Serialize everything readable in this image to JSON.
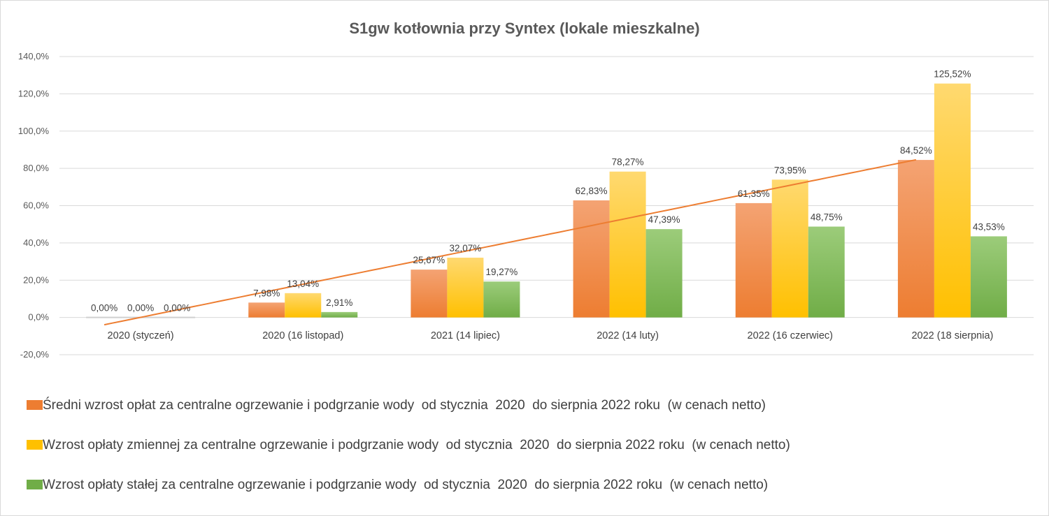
{
  "chart_data": {
    "type": "bar",
    "title": "S1gw kotłownia przy Syntex (lokale mieszkalne)",
    "xlabel": "",
    "ylabel": "",
    "categories": [
      "2020 (styczeń)",
      "2020 (16 listopad)",
      "2021 (14 lipiec)",
      "2022 (14 luty)",
      "2022 (16 czerwiec)",
      "2022 (18 sierpnia)"
    ],
    "series": [
      {
        "name": "Średni wzrost opłat za centralne ogrzewanie i podgrzanie wody  od stycznia  2020  do sierpnia 2022 roku  (w cenach netto)",
        "values": [
          0.0,
          7.98,
          25.67,
          62.83,
          61.35,
          84.52
        ],
        "labels": [
          "0,00%",
          "7,98%",
          "25,67%",
          "62,83%",
          "61,35%",
          "84,52%"
        ],
        "color": "#ed7d31",
        "color_light": "#f4a373"
      },
      {
        "name": "Wzrost opłaty zmiennej za centralne ogrzewanie i podgrzanie wody  od stycznia  2020  do sierpnia 2022 roku  (w cenach netto)",
        "values": [
          0.0,
          13.04,
          32.07,
          78.27,
          73.95,
          125.52
        ],
        "labels": [
          "0,00%",
          "13,04%",
          "32,07%",
          "78,27%",
          "73,95%",
          "125,52%"
        ],
        "color": "#ffc000",
        "color_light": "#ffd970"
      },
      {
        "name": "Wzrost opłaty stałej za centralne ogrzewanie i podgrzanie wody  od stycznia  2020  do sierpnia 2022 roku  (w cenach netto)",
        "values": [
          0.0,
          2.91,
          19.27,
          47.39,
          48.75,
          43.53
        ],
        "labels": [
          "0,00%",
          "2,91%",
          "19,27%",
          "47,39%",
          "48,75%",
          "43,53%"
        ],
        "color": "#70ad47",
        "color_light": "#9ccc7a"
      }
    ],
    "trendline": {
      "series": 0,
      "type": "polynomial",
      "color": "#ed7d31"
    },
    "yticks": [
      -20,
      0,
      20,
      40,
      60,
      80,
      100,
      120,
      140
    ],
    "ytick_labels": [
      "-20,0%",
      "0,0%",
      "20,0%",
      "40,0%",
      "60,0%",
      "80,0%",
      "100,0%",
      "120,0%",
      "140,0%"
    ],
    "ylim": [
      -20,
      140
    ],
    "grid": true,
    "legend_position": "bottom"
  }
}
